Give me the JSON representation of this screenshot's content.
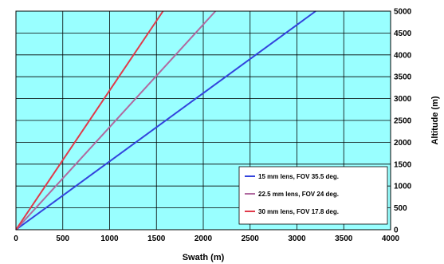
{
  "chart_data": {
    "type": "line",
    "title": "",
    "xlabel": "Swath (m)",
    "ylabel": "Altitude (m)",
    "xlim": [
      0,
      4000
    ],
    "ylim": [
      0,
      5000
    ],
    "xticks": [
      0,
      500,
      1000,
      1500,
      2000,
      2500,
      3000,
      3500,
      4000
    ],
    "yticks": [
      0,
      500,
      1000,
      1500,
      2000,
      2500,
      3000,
      3500,
      4000,
      4500,
      5000
    ],
    "grid": true,
    "background_color": "#99ffff",
    "legend_position": "bottom-right",
    "series": [
      {
        "name": "15 mm lens, FOV 35.5 deg.",
        "color": "#3344dd",
        "x": [
          0,
          3200
        ],
        "y": [
          0,
          5000
        ]
      },
      {
        "name": "22.5 mm lens, FOV 24 deg.",
        "color": "#b06aa0",
        "x": [
          0,
          2130
        ],
        "y": [
          0,
          5000
        ]
      },
      {
        "name": "30 mm lens, FOV 17.8 deg.",
        "color": "#e03a4a",
        "x": [
          0,
          1570
        ],
        "y": [
          0,
          5000
        ]
      }
    ]
  }
}
